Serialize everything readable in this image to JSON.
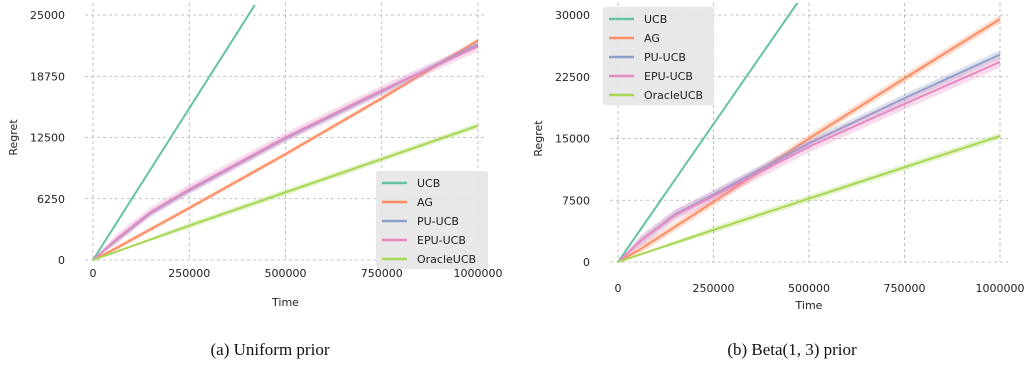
{
  "colors": {
    "UCB": "#66c2a5",
    "AG": "#fc8d62",
    "PU-UCB": "#8da0cb",
    "EPU-UCB": "#e78ac3",
    "OracleUCB": "#a6d854"
  },
  "chart_data": [
    {
      "type": "line",
      "caption": "(a) Uniform prior",
      "xlabel": "Time",
      "ylabel": "Regret",
      "xlim": [
        0,
        1000000
      ],
      "ylim": [
        0,
        25000
      ],
      "xticks": [
        0,
        250000,
        500000,
        750000,
        1000000
      ],
      "xtick_labels": [
        "0",
        "250000",
        "500000",
        "750000",
        "1000000"
      ],
      "yticks": [
        0,
        6250,
        12500,
        18750,
        25000
      ],
      "ytick_labels": [
        "0",
        "6250",
        "12500",
        "18750",
        "25000"
      ],
      "grid": true,
      "legend_position": "lower-right",
      "series": [
        {
          "name": "UCB",
          "x": [
            0,
            420000
          ],
          "y": [
            0,
            26000
          ],
          "band": 200
        },
        {
          "name": "AG",
          "x": [
            0,
            60000,
            250000,
            500000,
            750000,
            1000000
          ],
          "y": [
            0,
            1200,
            5300,
            10800,
            16500,
            22400
          ],
          "band": 250
        },
        {
          "name": "PU-UCB",
          "x": [
            0,
            60000,
            150000,
            250000,
            500000,
            750000,
            1000000
          ],
          "y": [
            0,
            2000,
            4800,
            7100,
            12400,
            17200,
            22000
          ],
          "band": 300
        },
        {
          "name": "EPU-UCB",
          "x": [
            0,
            60000,
            150000,
            250000,
            500000,
            750000,
            1000000
          ],
          "y": [
            0,
            2100,
            4900,
            7200,
            12500,
            17300,
            21800
          ],
          "band": 500
        },
        {
          "name": "OracleUCB",
          "x": [
            0,
            250000,
            500000,
            750000,
            1000000
          ],
          "y": [
            0,
            3500,
            6900,
            10300,
            13700
          ],
          "band": 300
        }
      ]
    },
    {
      "type": "line",
      "caption": "(b) Beta(1, 3) prior",
      "xlabel": "Time",
      "ylabel": "Regret",
      "xlim": [
        0,
        1000000
      ],
      "ylim": [
        0,
        30000
      ],
      "xticks": [
        0,
        250000,
        500000,
        750000,
        1000000
      ],
      "xtick_labels": [
        "0",
        "250000",
        "500000",
        "750000",
        "1000000"
      ],
      "yticks": [
        0,
        7500,
        15000,
        22500,
        30000
      ],
      "ytick_labels": [
        "0",
        "7500",
        "15000",
        "22500",
        "30000"
      ],
      "grid": true,
      "legend_position": "upper-left",
      "series": [
        {
          "name": "UCB",
          "x": [
            0,
            470000
          ],
          "y": [
            0,
            31500
          ],
          "band": 200
        },
        {
          "name": "AG",
          "x": [
            0,
            60000,
            250000,
            500000,
            750000,
            1000000
          ],
          "y": [
            0,
            1600,
            7300,
            15000,
            22300,
            29500
          ],
          "band": 500
        },
        {
          "name": "PU-UCB",
          "x": [
            0,
            60000,
            150000,
            250000,
            500000,
            750000,
            1000000
          ],
          "y": [
            0,
            2600,
            5800,
            8200,
            14400,
            19900,
            25200
          ],
          "band": 500
        },
        {
          "name": "EPU-UCB",
          "x": [
            0,
            60000,
            150000,
            250000,
            500000,
            750000,
            1000000
          ],
          "y": [
            0,
            2600,
            5700,
            8000,
            14000,
            19200,
            24300
          ],
          "band": 700
        },
        {
          "name": "OracleUCB",
          "x": [
            0,
            250000,
            500000,
            750000,
            1000000
          ],
          "y": [
            0,
            3900,
            7700,
            11500,
            15300
          ],
          "band": 400
        }
      ]
    }
  ]
}
